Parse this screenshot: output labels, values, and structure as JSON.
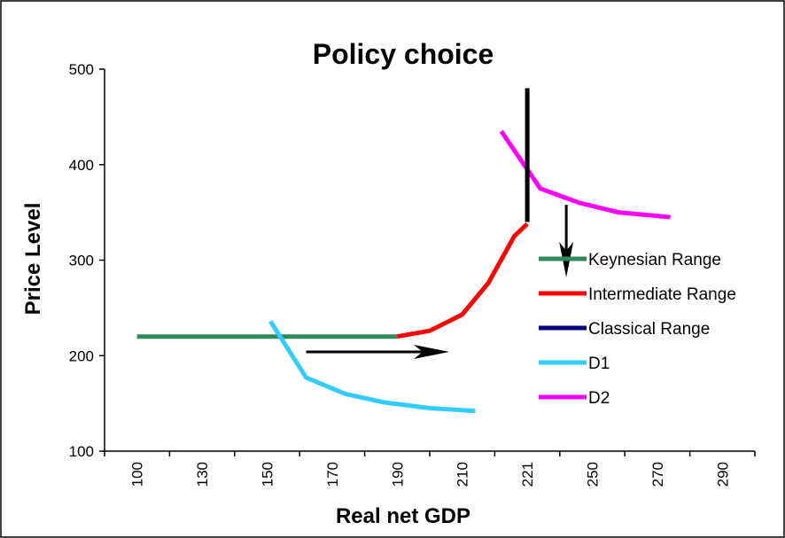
{
  "chart_data": {
    "type": "line",
    "title": "Policy choice",
    "xlabel": "Real net GDP",
    "ylabel": "Price Level",
    "categories": [
      "100",
      "130",
      "150",
      "170",
      "190",
      "210",
      "221",
      "250",
      "270",
      "290"
    ],
    "ylim": [
      100,
      500
    ],
    "yticks": [
      100,
      200,
      300,
      400,
      500
    ],
    "grid": false,
    "legend_position": "right",
    "series": [
      {
        "name": "Keynesian Range",
        "color": "#2e8b57",
        "points": [
          [
            0,
            220
          ],
          [
            4,
            220
          ]
        ]
      },
      {
        "name": "Intermediate Range",
        "color": "#ff0000",
        "points": [
          [
            4,
            220
          ],
          [
            4.5,
            226
          ],
          [
            5,
            243
          ],
          [
            5.4,
            276
          ],
          [
            5.8,
            325
          ],
          [
            6,
            338
          ]
        ]
      },
      {
        "name": "Classical Range",
        "color": "#000080",
        "points": []
      },
      {
        "name": "D1",
        "color": "#33ccff",
        "points": [
          [
            2.05,
            236
          ],
          [
            2.6,
            177
          ],
          [
            3.2,
            160
          ],
          [
            3.8,
            151
          ],
          [
            4.5,
            145
          ],
          [
            5.2,
            142
          ]
        ]
      },
      {
        "name": "D2",
        "color": "#ff00ff",
        "points": [
          [
            5.6,
            435
          ],
          [
            6.2,
            375
          ],
          [
            6.8,
            360
          ],
          [
            7.4,
            350
          ],
          [
            8.2,
            345
          ]
        ]
      }
    ],
    "annotations": [
      {
        "type": "arrow",
        "color": "#000000",
        "direction": "right",
        "from": [
          2.6,
          204
        ],
        "to": [
          4.8,
          204
        ]
      },
      {
        "type": "arrow",
        "color": "#000000",
        "direction": "down",
        "from": [
          6.6,
          358
        ],
        "to": [
          6.6,
          282
        ]
      },
      {
        "type": "line",
        "color": "#000000",
        "from": [
          6,
          480
        ],
        "to": [
          6,
          340
        ]
      }
    ]
  }
}
